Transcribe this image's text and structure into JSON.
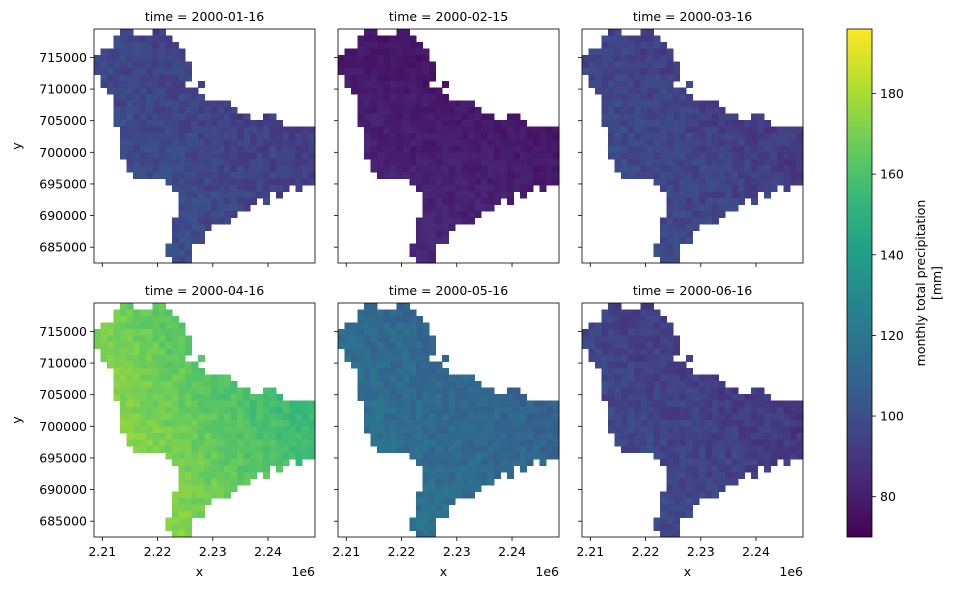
{
  "chart_data": {
    "type": "heatmap",
    "panel_titles": [
      "time = 2000-01-16",
      "time = 2000-02-15",
      "time = 2000-03-16",
      "time = 2000-04-16",
      "time = 2000-05-16",
      "time = 2000-06-16"
    ],
    "panel_means": [
      97,
      84,
      96,
      170,
      114,
      95
    ],
    "xlabel": "x",
    "ylabel": "y",
    "x_offset_label": "1e6",
    "xticks": [
      "2.21",
      "2.22",
      "2.23",
      "2.24"
    ],
    "xtick_values": [
      2.21,
      2.22,
      2.23,
      2.24
    ],
    "yticks": [
      "715000",
      "710000",
      "705000",
      "700000",
      "695000",
      "690000",
      "685000"
    ],
    "ytick_values": [
      715000,
      710000,
      705000,
      700000,
      695000,
      690000,
      685000
    ],
    "xlim": [
      2.2085,
      2.2485
    ],
    "ylim": [
      682500,
      719500
    ],
    "colorbar": {
      "label": "monthly total precipitation\n[mm]",
      "ticks": [
        "80",
        "100",
        "120",
        "140",
        "160",
        "180"
      ],
      "tick_values": [
        80,
        100,
        120,
        140,
        160,
        180
      ],
      "range": [
        70,
        196
      ],
      "colormap": "viridis"
    }
  }
}
